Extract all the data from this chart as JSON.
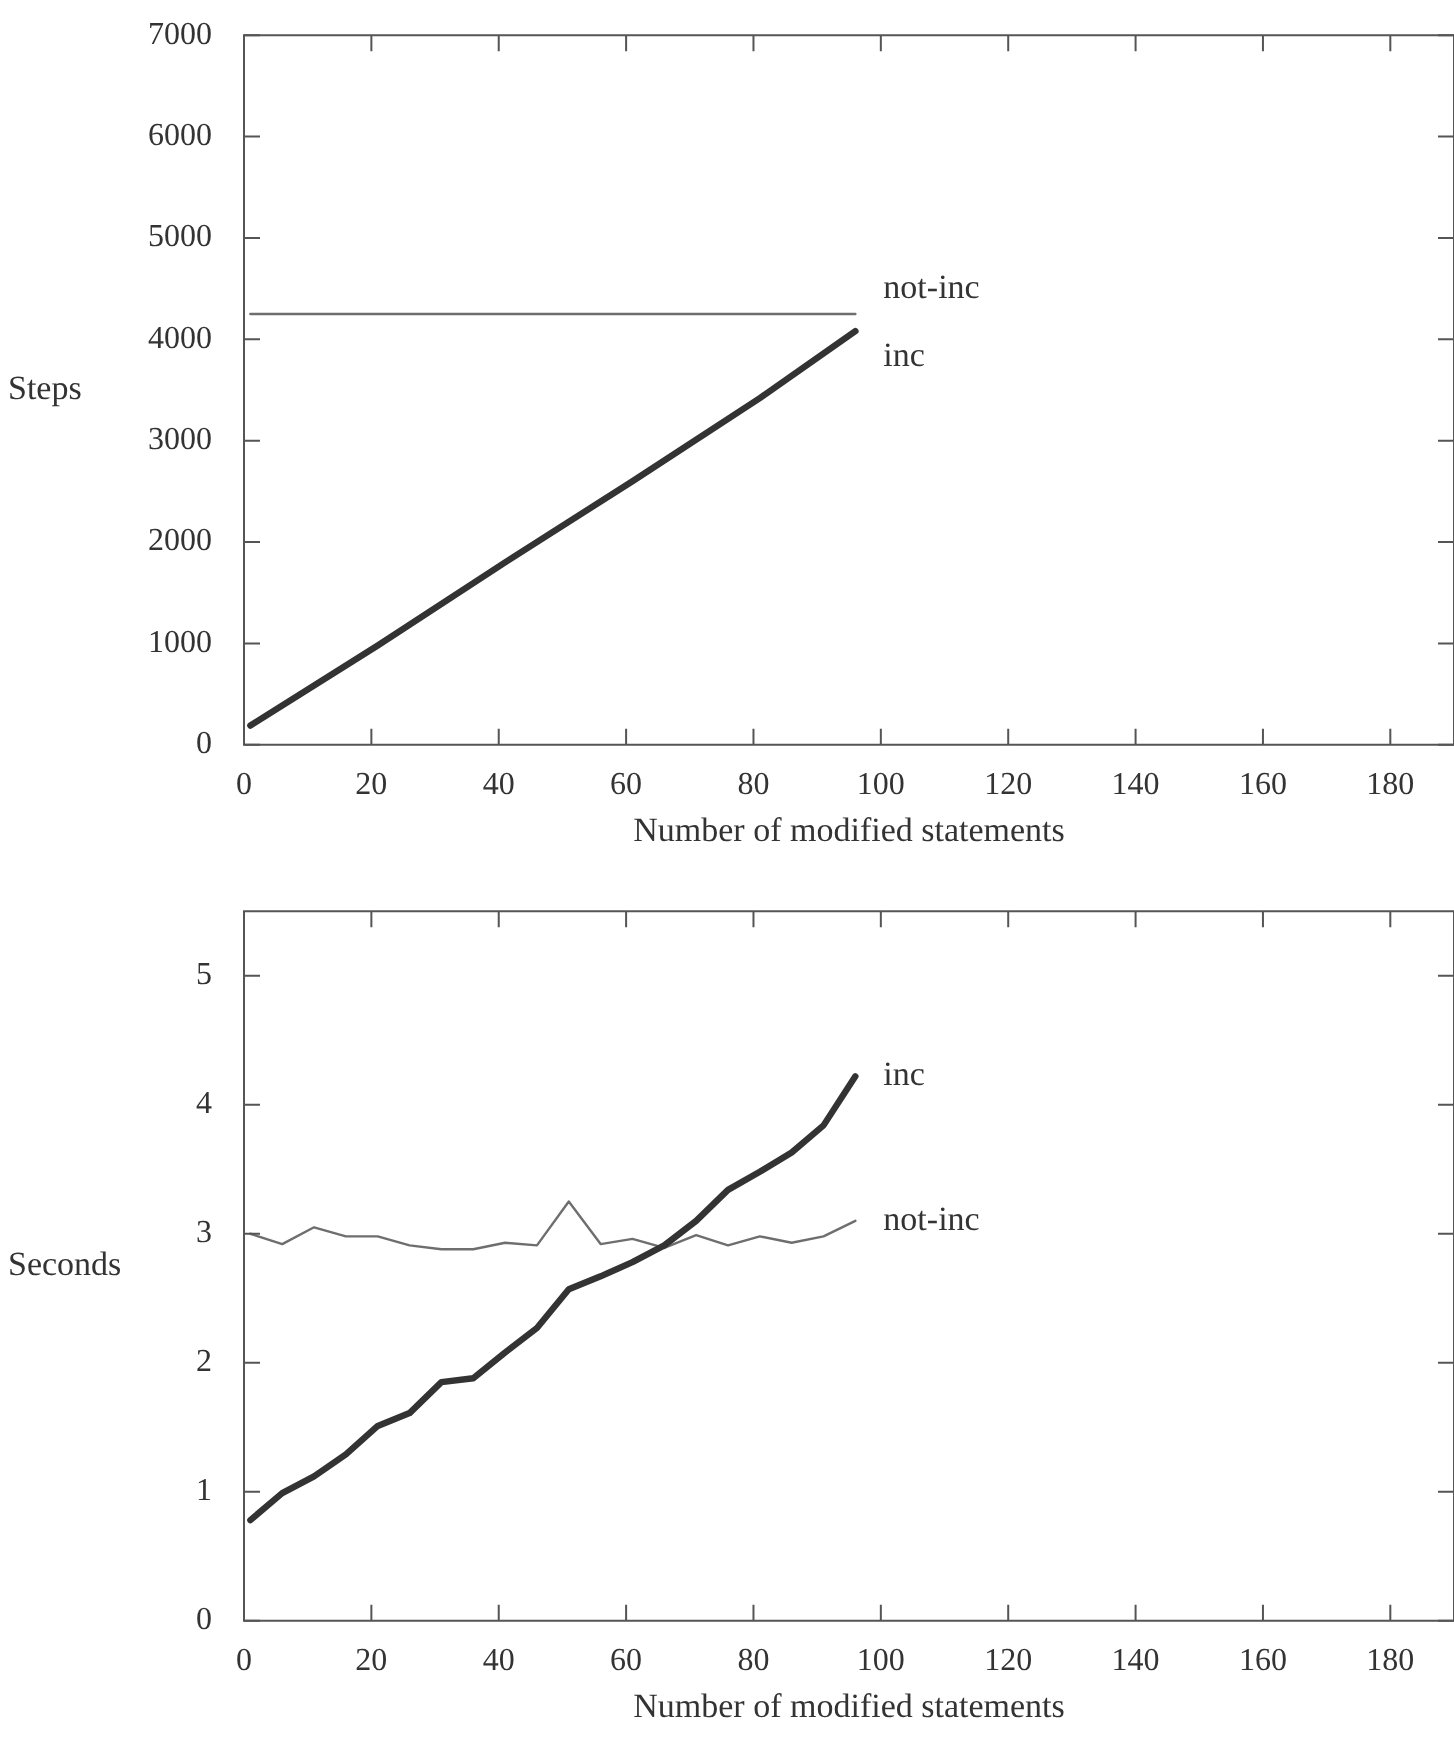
{
  "chart_data": [
    {
      "type": "line",
      "xlabel": "Number of modified statements",
      "ylabel": "Steps",
      "legend": false,
      "grid": false,
      "marker": "none",
      "line_style": "solid",
      "xlim": [
        0,
        190
      ],
      "xticks": [
        0,
        20,
        40,
        60,
        80,
        100,
        120,
        140,
        160,
        180
      ],
      "ylim": [
        0,
        7000
      ],
      "yticks": [
        0,
        1000,
        2000,
        3000,
        4000,
        5000,
        6000,
        7000
      ],
      "series": [
        {
          "name": "not-inc",
          "color": "#6e6e6e",
          "x": [
            1,
            96
          ],
          "values": [
            4250,
            4250
          ]
        },
        {
          "name": "inc",
          "color": "#333333",
          "x": [
            1,
            21,
            41,
            61,
            81,
            96
          ],
          "values": [
            190,
            980,
            1800,
            2600,
            3420,
            4080
          ]
        }
      ]
    },
    {
      "type": "line",
      "xlabel": "Number of modified statements",
      "ylabel": "Seconds",
      "legend": false,
      "grid": false,
      "marker": "none",
      "line_style": "solid",
      "xlim": [
        0,
        190
      ],
      "xticks": [
        0,
        20,
        40,
        60,
        80,
        100,
        120,
        140,
        160,
        180
      ],
      "ylim": [
        0,
        5.5
      ],
      "yticks": [
        0,
        1,
        2,
        3,
        4,
        5
      ],
      "series": [
        {
          "name": "inc",
          "color": "#333333",
          "x": [
            1,
            6,
            11,
            16,
            21,
            26,
            31,
            36,
            41,
            46,
            51,
            56,
            61,
            66,
            71,
            76,
            81,
            86,
            91,
            96
          ],
          "values": [
            0.78,
            0.99,
            1.12,
            1.29,
            1.51,
            1.61,
            1.85,
            1.88,
            2.08,
            2.27,
            2.57,
            2.67,
            2.78,
            2.91,
            3.1,
            3.34,
            3.48,
            3.63,
            3.84,
            4.22
          ]
        },
        {
          "name": "not-inc",
          "color": "#6e6e6e",
          "x": [
            1,
            6,
            11,
            16,
            21,
            26,
            31,
            36,
            41,
            46,
            51,
            56,
            61,
            66,
            71,
            76,
            81,
            86,
            91,
            96
          ],
          "values": [
            3.0,
            2.92,
            3.05,
            2.98,
            2.98,
            2.91,
            2.88,
            2.88,
            2.93,
            2.91,
            3.25,
            2.92,
            2.96,
            2.89,
            2.99,
            2.91,
            2.98,
            2.93,
            2.98,
            3.1
          ]
        }
      ]
    }
  ]
}
